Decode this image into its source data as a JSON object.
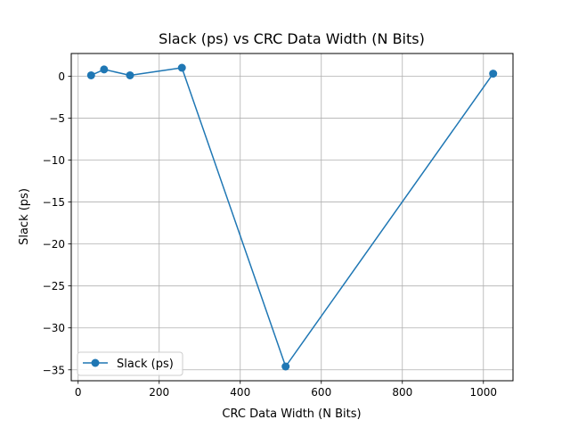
{
  "chart_data": {
    "type": "line",
    "title": "Slack (ps)  vs CRC Data Width (N Bits)",
    "xlabel": "CRC Data Width (N Bits)",
    "ylabel": "Slack (ps)",
    "xlim": [
      -17,
      1073
    ],
    "ylim": [
      -36.3,
      2.7
    ],
    "x_ticks": [
      0,
      200,
      400,
      600,
      800,
      1000
    ],
    "x_tick_labels": [
      "0",
      "200",
      "400",
      "600",
      "800",
      "1000"
    ],
    "y_ticks": [
      0,
      -5,
      -10,
      -15,
      -20,
      -25,
      -30,
      -35
    ],
    "y_tick_labels": [
      "0",
      "−5",
      "−10",
      "−15",
      "−20",
      "−25",
      "−30",
      "−35"
    ],
    "grid": true,
    "legend_position": "lower-left",
    "series": [
      {
        "name": "Slack (ps)",
        "color": "#1f77b4",
        "x": [
          32,
          64,
          128,
          256,
          512,
          1024
        ],
        "y": [
          0.1,
          0.8,
          0.1,
          1.0,
          -34.6,
          0.3
        ]
      }
    ]
  }
}
